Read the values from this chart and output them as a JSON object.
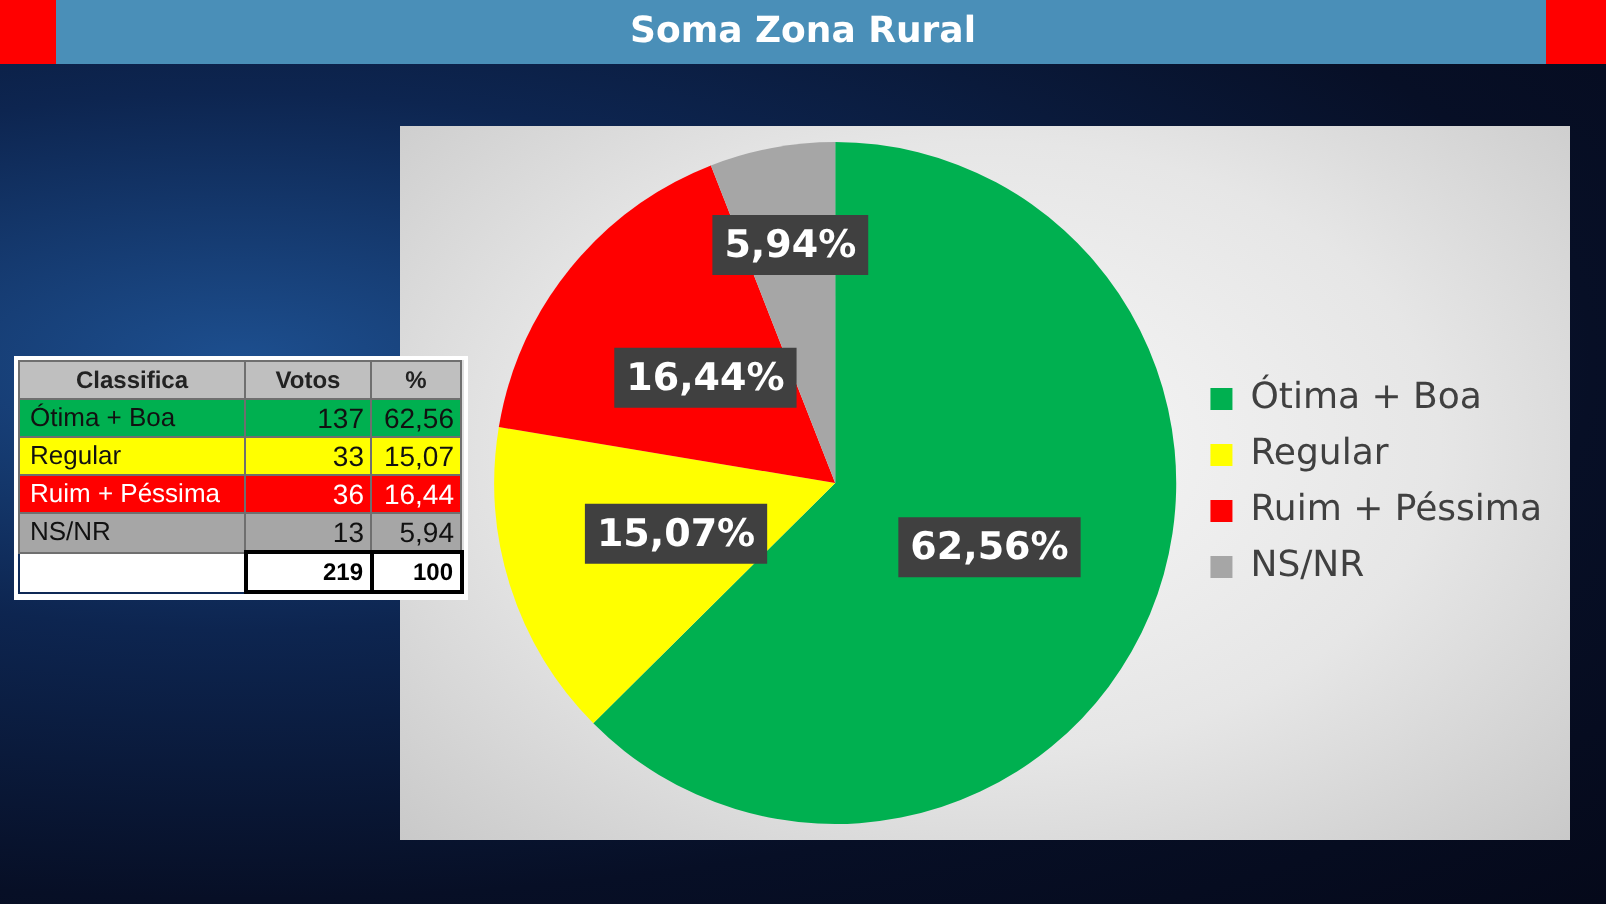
{
  "chart_data": [
    {
      "type": "pie",
      "title": "Soma Zona Rural",
      "categories": [
        "Ótima + Boa",
        "Regular",
        "Ruim + Péssima",
        "NS/NR"
      ],
      "values": [
        62.56,
        15.07,
        16.44,
        5.94
      ],
      "colors": [
        "#00b050",
        "#ffff00",
        "#ff0000",
        "#a6a6a6"
      ],
      "value_labels": [
        "62,56%",
        "15,07%",
        "16,44%",
        "5,94%"
      ],
      "legend": "right"
    },
    {
      "type": "other",
      "xlabel": "Classifica",
      "categories": [
        "Ótima + Boa",
        "Regular",
        "Ruim + Péssima",
        "NS/NR"
      ],
      "colors": [
        "#00b050",
        "#ffff00",
        "#ff0000",
        "#a6a6a6"
      ],
      "data_labels": true,
      "series": [
        {
          "name": "Votos",
          "colors": [
            "#00b050",
            "#ffff00",
            "#ff0000",
            "#a6a6a6"
          ],
          "values": [
            137,
            33,
            36,
            13
          ]
        },
        {
          "name": "%",
          "colors": [
            "#00b050",
            "#ffff00",
            "#ff0000",
            "#a6a6a6"
          ],
          "values": [
            62.56,
            15.07,
            16.44,
            5.94
          ],
          "value_labels": [
            "62,56",
            "15,07",
            "16,44",
            "5,94"
          ]
        }
      ],
      "annotations": [
        "219",
        "100"
      ]
    }
  ]
}
